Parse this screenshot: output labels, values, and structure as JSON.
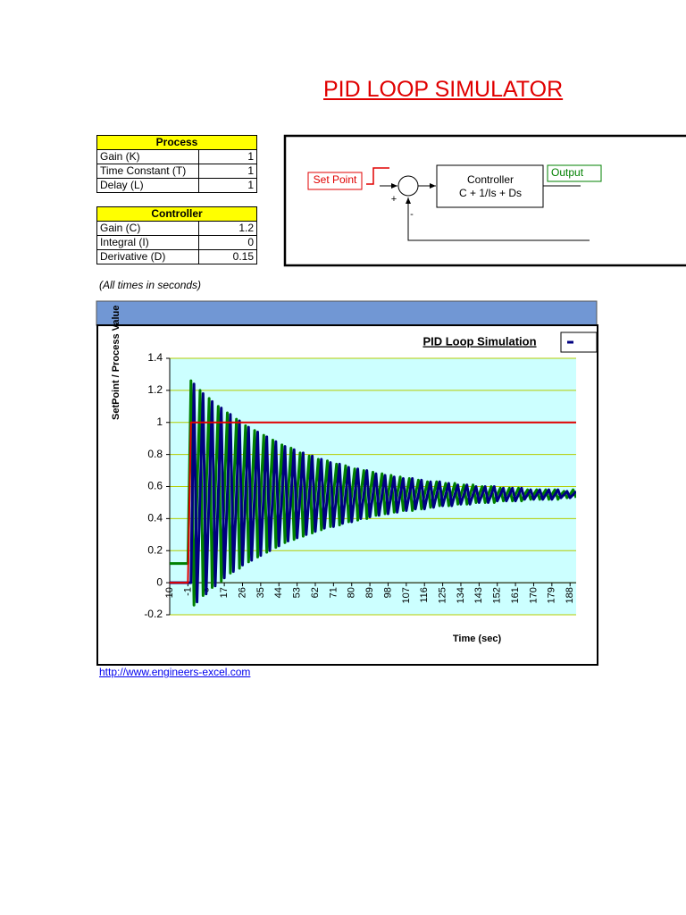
{
  "header": {
    "title": "PID LOOP SIMULATOR"
  },
  "process_table": {
    "title": "Process",
    "rows": [
      [
        "Gain (K)",
        1
      ],
      [
        "Time Constant (T)",
        1
      ],
      [
        "Delay (L)",
        1
      ]
    ]
  },
  "controller_table": {
    "title": "Controller",
    "rows": [
      [
        "Gain (C)",
        1.2
      ],
      [
        "Integral (I)",
        0
      ],
      [
        "Derivative (D)",
        0.15
      ]
    ]
  },
  "diagram": {
    "setpoint": "Set Point",
    "plus": "+",
    "minus": "-",
    "controller": "Controller",
    "formula": "C + 1/Is + Ds",
    "output": "Output"
  },
  "note": "(All times in seconds)",
  "chart_data": {
    "type": "line",
    "title": "PID Loop Simulation",
    "x_label": "Time (sec)",
    "y_label": "SetPoint / Process Value",
    "x": [
      -10,
      -1,
      0.5,
      2,
      3.5,
      5,
      6.5,
      8,
      9.5,
      11,
      12.5,
      14,
      15.5,
      17,
      18.5,
      20,
      21.5,
      23,
      24.5,
      26,
      27.5,
      29,
      30.5,
      32,
      33.5,
      35,
      36.5,
      38,
      39.5,
      41,
      42.5,
      44,
      45.5,
      47,
      48.5,
      50,
      51.5,
      53,
      54.5,
      56,
      57.5,
      59,
      60.5,
      62,
      63.5,
      65,
      66.5,
      68,
      69.5,
      71,
      72.5,
      74,
      75.5,
      77,
      78.5,
      80,
      81.5,
      83,
      84.5,
      86,
      87.5,
      89,
      90.5,
      92,
      93.5,
      95,
      96.5,
      98,
      99.5,
      101,
      102.5,
      104,
      105.5,
      107,
      108.5,
      110,
      111.5,
      113,
      114.5,
      116,
      117.5,
      119,
      120.5,
      122,
      123.5,
      125,
      126.5,
      128,
      129.5,
      131,
      132.5,
      134,
      135.5,
      137,
      138.5,
      140,
      141.5,
      143,
      144.5,
      146,
      147.5,
      149,
      150.5,
      152,
      153.5,
      155,
      156.5,
      158,
      159.5,
      161,
      162.5,
      164,
      165.5,
      167,
      168.5,
      170,
      171.5,
      173,
      174.5,
      176,
      177.5,
      179,
      180.5,
      182,
      183.5,
      185,
      186.5,
      188,
      189.5,
      191
    ],
    "series": [
      {
        "color": "#008000",
        "values": [
          0.12,
          0.12,
          1.26,
          -0.14,
          0.55,
          1.2,
          -0.08,
          0.55,
          1.15,
          -0.03,
          0.55,
          1.1,
          0.01,
          0.55,
          1.06,
          0.06,
          0.55,
          1.02,
          0.09,
          0.55,
          0.98,
          0.13,
          0.55,
          0.95,
          0.16,
          0.55,
          0.92,
          0.19,
          0.55,
          0.89,
          0.22,
          0.55,
          0.86,
          0.25,
          0.55,
          0.84,
          0.27,
          0.55,
          0.81,
          0.29,
          0.55,
          0.79,
          0.31,
          0.55,
          0.77,
          0.33,
          0.55,
          0.76,
          0.35,
          0.55,
          0.74,
          0.36,
          0.55,
          0.73,
          0.38,
          0.55,
          0.71,
          0.39,
          0.55,
          0.7,
          0.4,
          0.55,
          0.69,
          0.42,
          0.55,
          0.68,
          0.43,
          0.55,
          0.67,
          0.44,
          0.55,
          0.66,
          0.45,
          0.55,
          0.65,
          0.45,
          0.55,
          0.64,
          0.46,
          0.55,
          0.63,
          0.47,
          0.55,
          0.63,
          0.48,
          0.55,
          0.62,
          0.48,
          0.55,
          0.62,
          0.49,
          0.55,
          0.61,
          0.49,
          0.55,
          0.61,
          0.5,
          0.55,
          0.6,
          0.5,
          0.55,
          0.6,
          0.5,
          0.55,
          0.59,
          0.51,
          0.55,
          0.59,
          0.51,
          0.55,
          0.59,
          0.51,
          0.55,
          0.58,
          0.52,
          0.55,
          0.58,
          0.52,
          0.55,
          0.58,
          0.52,
          0.55,
          0.58,
          0.52,
          0.55,
          0.57,
          0.53,
          0.55,
          0.58,
          0.53
        ]
      },
      {
        "color": "#000080",
        "values": [
          0,
          0,
          0,
          1.24,
          -0.12,
          0.55,
          1.18,
          -0.07,
          0.55,
          1.13,
          -0.02,
          0.55,
          1.09,
          0.03,
          0.55,
          1.05,
          0.07,
          0.55,
          1.01,
          0.11,
          0.55,
          0.97,
          0.14,
          0.55,
          0.94,
          0.17,
          0.55,
          0.91,
          0.2,
          0.55,
          0.88,
          0.23,
          0.55,
          0.85,
          0.26,
          0.55,
          0.83,
          0.28,
          0.55,
          0.81,
          0.3,
          0.55,
          0.79,
          0.32,
          0.55,
          0.77,
          0.34,
          0.55,
          0.75,
          0.35,
          0.55,
          0.74,
          0.37,
          0.55,
          0.72,
          0.38,
          0.55,
          0.71,
          0.4,
          0.55,
          0.7,
          0.41,
          0.55,
          0.68,
          0.42,
          0.55,
          0.67,
          0.43,
          0.55,
          0.66,
          0.44,
          0.55,
          0.65,
          0.45,
          0.55,
          0.65,
          0.46,
          0.55,
          0.64,
          0.46,
          0.55,
          0.63,
          0.47,
          0.55,
          0.63,
          0.48,
          0.55,
          0.62,
          0.48,
          0.55,
          0.61,
          0.49,
          0.55,
          0.61,
          0.49,
          0.55,
          0.6,
          0.5,
          0.55,
          0.6,
          0.5,
          0.55,
          0.6,
          0.51,
          0.55,
          0.59,
          0.51,
          0.55,
          0.59,
          0.51,
          0.55,
          0.59,
          0.52,
          0.55,
          0.58,
          0.52,
          0.55,
          0.58,
          0.52,
          0.55,
          0.58,
          0.52,
          0.55,
          0.58,
          0.53,
          0.55,
          0.57,
          0.53,
          0.55,
          0.57
        ]
      },
      {
        "color": "#e00000",
        "values": [
          0,
          0,
          1,
          1,
          1,
          1,
          1,
          1,
          1,
          1,
          1,
          1,
          1,
          1,
          1,
          1,
          1,
          1,
          1,
          1,
          1,
          1,
          1,
          1,
          1,
          1,
          1,
          1,
          1,
          1,
          1,
          1,
          1,
          1,
          1,
          1,
          1,
          1,
          1,
          1,
          1,
          1,
          1,
          1,
          1,
          1,
          1,
          1,
          1,
          1,
          1,
          1,
          1,
          1,
          1,
          1,
          1,
          1,
          1,
          1,
          1,
          1,
          1,
          1,
          1,
          1,
          1,
          1,
          1,
          1,
          1,
          1,
          1,
          1,
          1,
          1,
          1,
          1,
          1,
          1,
          1,
          1,
          1,
          1,
          1,
          1,
          1,
          1,
          1,
          1,
          1,
          1,
          1,
          1,
          1,
          1,
          1,
          1,
          1,
          1,
          1,
          1,
          1,
          1,
          1,
          1,
          1,
          1,
          1,
          1,
          1,
          1,
          1,
          1,
          1,
          1,
          1,
          1,
          1,
          1,
          1,
          1,
          1,
          1,
          1,
          1,
          1,
          1,
          1,
          1
        ]
      }
    ],
    "xlim": [
      -10,
      191
    ],
    "xticks": [
      -10,
      -1,
      8,
      17,
      26,
      35,
      44,
      53,
      62,
      71,
      80,
      89,
      98,
      107,
      116,
      125,
      134,
      143,
      152,
      161,
      170,
      179,
      188
    ],
    "ylim": [
      -0.2,
      1.4
    ],
    "yticks": [
      -0.2,
      0,
      0.2,
      0.4,
      0.6,
      0.8,
      1,
      1.2,
      1.4
    ],
    "grid": true
  },
  "footer": {
    "link": "http://www.engineers-excel.com"
  }
}
